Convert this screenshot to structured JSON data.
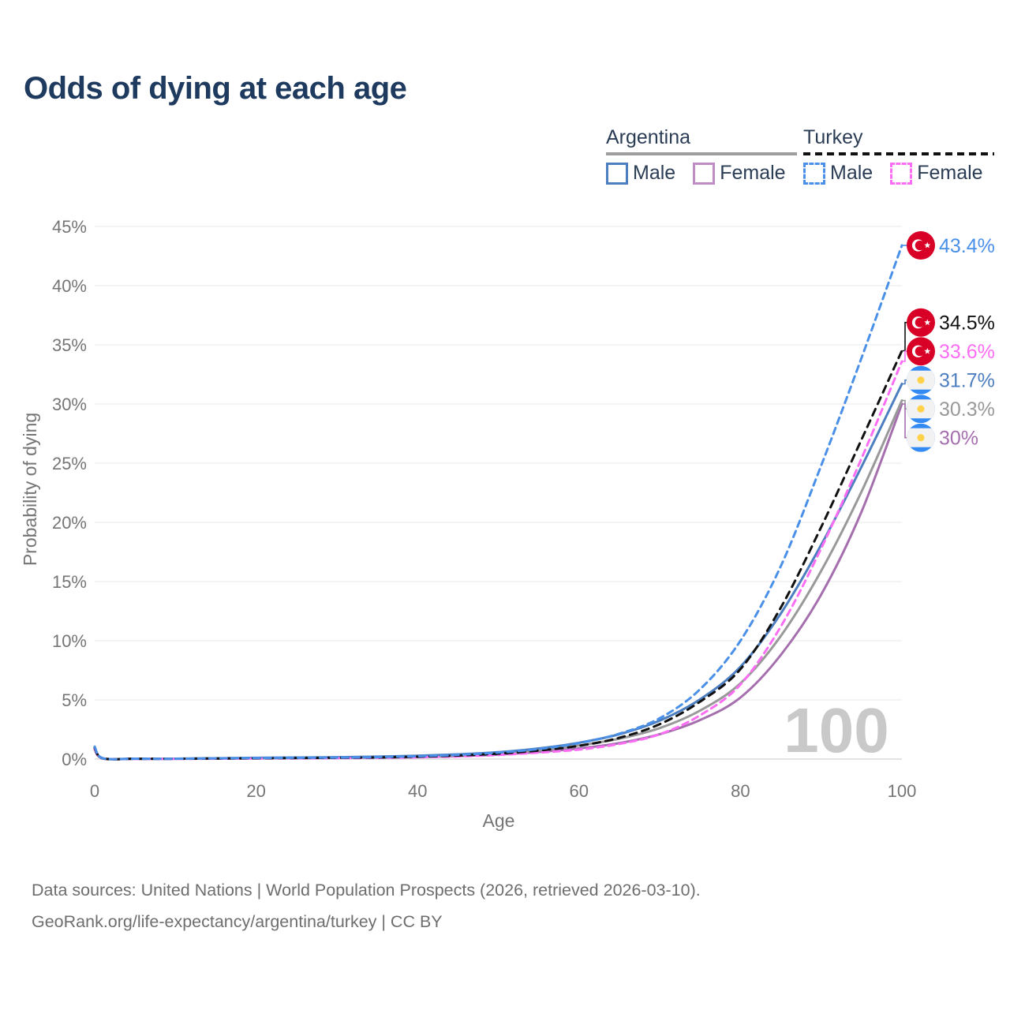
{
  "header": {
    "title": "Odds of dying at each age"
  },
  "legend": {
    "groups": [
      {
        "country": "Argentina",
        "line_style": "solid",
        "underline_color": "#9e9e9e",
        "items": [
          {
            "label": "Male",
            "color": "#4d7fc0",
            "dashed": false
          },
          {
            "label": "Female",
            "color": "#c08cc4",
            "dashed": false
          }
        ]
      },
      {
        "country": "Turkey",
        "line_style": "dashed",
        "underline_color": "#111111",
        "items": [
          {
            "label": "Male",
            "color": "#4a90e8",
            "dashed": true
          },
          {
            "label": "Female",
            "color": "#fb6ef4",
            "dashed": true
          }
        ]
      }
    ]
  },
  "chart_data": {
    "type": "line",
    "title": "Odds of dying at each age",
    "xlabel": "Age",
    "ylabel": "Probability of dying",
    "watermark": "100",
    "xlim": [
      0,
      100
    ],
    "ylim": [
      0,
      46.3
    ],
    "x_ticks": [
      0,
      20,
      40,
      60,
      80,
      100
    ],
    "y_ticks": [
      0,
      5,
      10,
      15,
      20,
      25,
      30,
      35,
      40,
      45
    ],
    "y_tick_suffix": "%",
    "grid": true,
    "legend_position": "top-right",
    "ages": [
      0,
      1,
      5,
      10,
      15,
      20,
      25,
      30,
      35,
      40,
      45,
      50,
      55,
      60,
      65,
      70,
      75,
      80,
      85,
      90,
      95,
      100
    ],
    "series": [
      {
        "name": "Argentina Female",
        "country": "Argentina",
        "sex": "Female",
        "color": "#a56fae",
        "dashed": false,
        "end_value": 30.0,
        "end_label": "30%",
        "values": [
          0.8,
          0.05,
          0.02,
          0.02,
          0.04,
          0.06,
          0.08,
          0.1,
          0.13,
          0.17,
          0.25,
          0.38,
          0.6,
          0.9,
          1.35,
          2.1,
          3.3,
          5.2,
          8.8,
          13.9,
          20.9,
          30.0
        ]
      },
      {
        "name": "Argentina Total",
        "country": "Argentina",
        "sex": "Total",
        "color": "#999999",
        "dashed": false,
        "end_value": 30.3,
        "end_label": "30.3%",
        "values": [
          0.9,
          0.06,
          0.03,
          0.03,
          0.05,
          0.08,
          0.1,
          0.12,
          0.16,
          0.22,
          0.32,
          0.48,
          0.75,
          1.15,
          1.72,
          2.62,
          4.1,
          6.4,
          10.4,
          15.9,
          22.6,
          30.3
        ]
      },
      {
        "name": "Argentina Male",
        "country": "Argentina",
        "sex": "Male",
        "color": "#4d7fc0",
        "dashed": false,
        "end_value": 31.7,
        "end_label": "31.7%",
        "values": [
          1.0,
          0.07,
          0.03,
          0.03,
          0.07,
          0.11,
          0.13,
          0.16,
          0.21,
          0.28,
          0.4,
          0.58,
          0.9,
          1.38,
          2.1,
          3.25,
          5.05,
          7.8,
          12.3,
          18.1,
          24.7,
          31.7
        ]
      },
      {
        "name": "Turkey Female",
        "country": "Turkey",
        "sex": "Female",
        "color": "#fb6ef4",
        "dashed": true,
        "end_value": 33.6,
        "end_label": "33.6%",
        "values": [
          0.85,
          0.05,
          0.02,
          0.02,
          0.03,
          0.05,
          0.06,
          0.08,
          0.1,
          0.15,
          0.22,
          0.35,
          0.55,
          0.8,
          1.28,
          2.1,
          3.7,
          6.3,
          11.2,
          17.8,
          25.4,
          33.6
        ]
      },
      {
        "name": "Turkey Total",
        "country": "Turkey",
        "sex": "Total",
        "color": "#111111",
        "dashed": true,
        "end_value": 34.5,
        "end_label": "34.5%",
        "values": [
          0.95,
          0.06,
          0.03,
          0.03,
          0.05,
          0.07,
          0.09,
          0.11,
          0.14,
          0.2,
          0.3,
          0.46,
          0.72,
          1.12,
          1.8,
          2.95,
          4.85,
          7.6,
          12.8,
          19.6,
          27.0,
          34.5
        ]
      },
      {
        "name": "Turkey Male",
        "country": "Turkey",
        "sex": "Male",
        "color": "#4a90e8",
        "dashed": true,
        "end_value": 43.4,
        "end_label": "43.4%",
        "values": [
          1.05,
          0.07,
          0.03,
          0.03,
          0.06,
          0.09,
          0.11,
          0.13,
          0.17,
          0.24,
          0.36,
          0.55,
          0.85,
          1.35,
          2.15,
          3.45,
          5.9,
          10.0,
          16.3,
          24.8,
          33.9,
          43.4
        ]
      }
    ],
    "flag_colors": {
      "turkey_red": "#d80027",
      "argentina_blue": "#338af3",
      "argentina_white": "#f2f2f2",
      "argentina_sun": "#ffd24a"
    }
  },
  "footer": {
    "line1": "Data sources: United Nations | World Population Prospects (2026, retrieved 2026-03-10).",
    "line2": "GeoRank.org/life-expectancy/argentina/turkey | CC BY"
  }
}
